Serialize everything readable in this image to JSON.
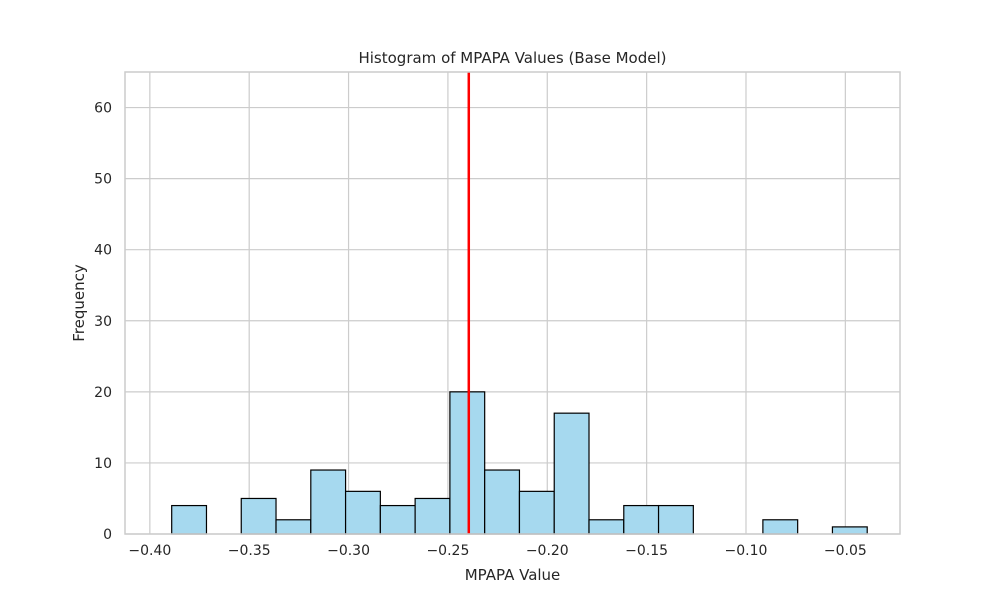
{
  "chart_data": {
    "type": "bar",
    "title": "Histogram of MPAPA Values (Base Model)",
    "xlabel": "MPAPA Value",
    "ylabel": "Frequency",
    "xlim": [
      -0.4125,
      -0.0225
    ],
    "ylim": [
      0,
      65
    ],
    "xticks": [
      -0.4,
      -0.35,
      -0.3,
      -0.25,
      -0.2,
      -0.15,
      -0.1,
      -0.05
    ],
    "xtick_labels": [
      "−0.40",
      "−0.35",
      "−0.30",
      "−0.25",
      "−0.20",
      "−0.15",
      "−0.10",
      "−0.05"
    ],
    "yticks": [
      0,
      10,
      20,
      30,
      40,
      50,
      60
    ],
    "ytick_labels": [
      "0",
      "10",
      "20",
      "30",
      "40",
      "50",
      "60"
    ],
    "grid": true,
    "bin_edges": [
      -0.389,
      -0.3715,
      -0.354,
      -0.3365,
      -0.319,
      -0.3015,
      -0.284,
      -0.2665,
      -0.249,
      -0.2315,
      -0.214,
      -0.1965,
      -0.179,
      -0.1615,
      -0.144,
      -0.1265,
      -0.109,
      -0.0915,
      -0.074,
      -0.0565,
      -0.039
    ],
    "counts": [
      4,
      0,
      5,
      2,
      9,
      6,
      4,
      5,
      20,
      9,
      6,
      17,
      2,
      4,
      4,
      0,
      0,
      2,
      0,
      1
    ],
    "bar_color": "#a6d9ef",
    "bar_edge_color": "#000000",
    "vline": {
      "x": -0.2395,
      "color": "#ff0000"
    }
  }
}
